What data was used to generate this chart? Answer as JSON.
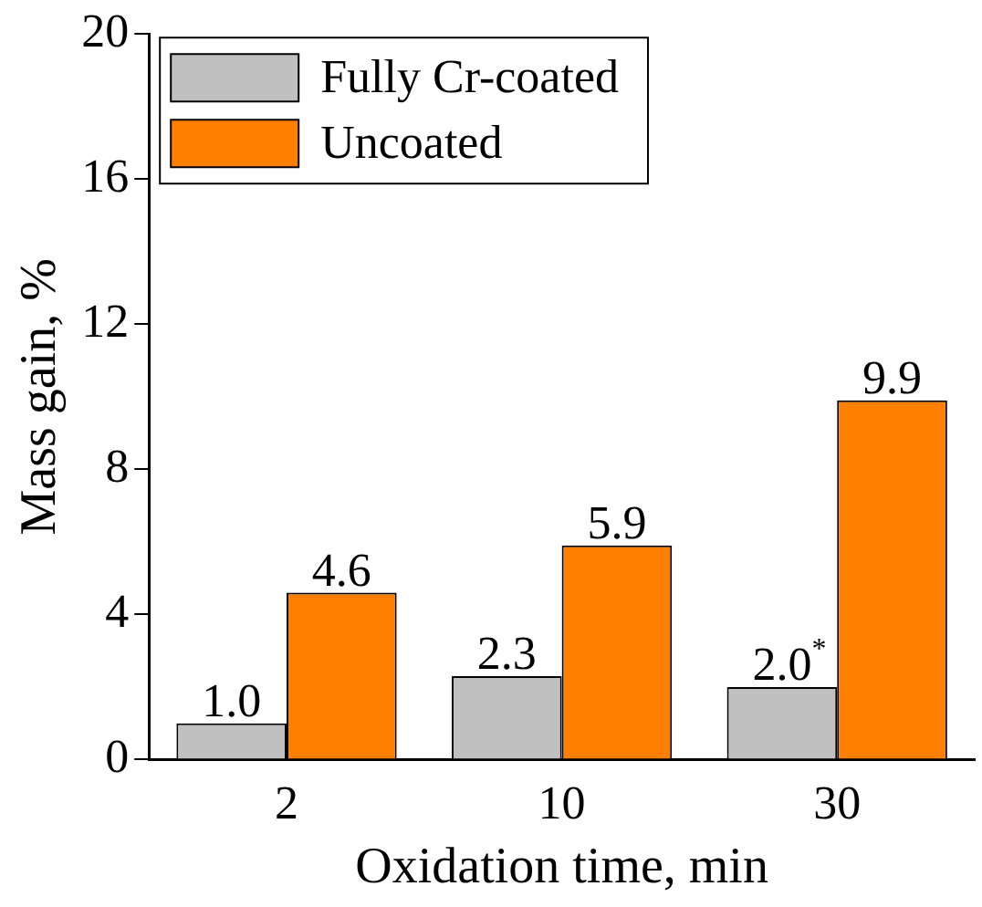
{
  "chart_data": {
    "type": "bar",
    "xlabel": "Oxidation time, min",
    "ylabel": "Mass gain, %",
    "categories": [
      "2",
      "10",
      "30"
    ],
    "series": [
      {
        "name": "Fully Cr-coated",
        "color": "#c0c0c0",
        "values": [
          1.0,
          2.3,
          2.0
        ],
        "value_labels": [
          "1.0",
          "2.3",
          "2.0$^{*}$"
        ]
      },
      {
        "name": "Uncoated",
        "color": "#ff7f00",
        "values": [
          4.6,
          5.9,
          9.9
        ],
        "value_labels": [
          "4.6",
          "5.9",
          "9.9"
        ]
      }
    ],
    "ylim": [
      0,
      20
    ],
    "yticks": [
      0,
      4,
      8,
      12,
      16,
      20
    ],
    "grid": false,
    "legend": "top left"
  }
}
